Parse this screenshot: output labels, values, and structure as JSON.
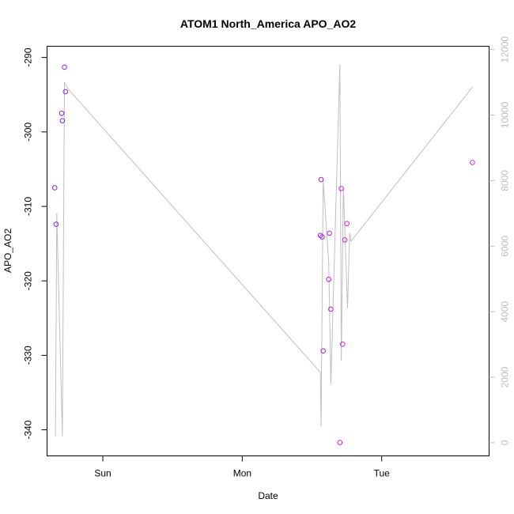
{
  "chart_data": {
    "type": "scatter",
    "title": "ATOM1 North_America APO_AO2",
    "xlabel": "Date",
    "ylabel": "APO_AO2",
    "x_ticks": [
      {
        "label": "Sun",
        "value": 1.0
      },
      {
        "label": "Mon",
        "value": 2.0
      },
      {
        "label": "Tue",
        "value": 3.0
      }
    ],
    "xlim": [
      0.6,
      3.77
    ],
    "ylim": [
      -343.5,
      -288.5
    ],
    "y_ticks": [
      -290,
      -300,
      -310,
      -320,
      -330,
      -340
    ],
    "y2lim": [
      -400,
      12100
    ],
    "y2_ticks": [
      0,
      2000,
      4000,
      6000,
      8000,
      10000,
      12000
    ],
    "grid": false,
    "points_color_start": "#7b20e8",
    "points_color_end": "#e020d8",
    "line_color": "#bfbfbf",
    "right_axis_color": "#bdbdbd",
    "points": [
      {
        "x": 0.655,
        "y": -307.5
      },
      {
        "x": 0.665,
        "y": -312.4
      },
      {
        "x": 0.705,
        "y": -297.5
      },
      {
        "x": 0.71,
        "y": -298.5
      },
      {
        "x": 0.725,
        "y": -291.3
      },
      {
        "x": 0.732,
        "y": -294.6
      },
      {
        "x": 2.56,
        "y": -313.9
      },
      {
        "x": 2.565,
        "y": -306.4
      },
      {
        "x": 2.573,
        "y": -314.1
      },
      {
        "x": 2.58,
        "y": -329.4
      },
      {
        "x": 2.62,
        "y": -319.8
      },
      {
        "x": 2.625,
        "y": -313.6
      },
      {
        "x": 2.635,
        "y": -323.8
      },
      {
        "x": 2.7,
        "y": -341.7
      },
      {
        "x": 2.71,
        "y": -307.6
      },
      {
        "x": 2.72,
        "y": -328.5
      },
      {
        "x": 2.735,
        "y": -314.5
      },
      {
        "x": 2.75,
        "y": -312.3
      },
      {
        "x": 3.65,
        "y": -304.1
      }
    ],
    "line_series": [
      {
        "x": 0.66,
        "y2": 200
      },
      {
        "x": 0.67,
        "y2": 7000
      },
      {
        "x": 0.71,
        "y2": 200
      },
      {
        "x": 0.725,
        "y2": 11000
      },
      {
        "x": 0.75,
        "y2": 10800
      },
      {
        "x": 2.56,
        "y2": 2150
      },
      {
        "x": 2.565,
        "y2": 500
      },
      {
        "x": 2.58,
        "y2": 8000
      },
      {
        "x": 2.62,
        "y2": 5500
      },
      {
        "x": 2.635,
        "y2": 1800
      },
      {
        "x": 2.7,
        "y2": 11550
      },
      {
        "x": 2.71,
        "y2": 2500
      },
      {
        "x": 2.725,
        "y2": 7800
      },
      {
        "x": 2.755,
        "y2": 4100
      },
      {
        "x": 2.77,
        "y2": 6400
      },
      {
        "x": 2.78,
        "y2": 6150
      },
      {
        "x": 3.65,
        "y2": 10850
      }
    ]
  }
}
